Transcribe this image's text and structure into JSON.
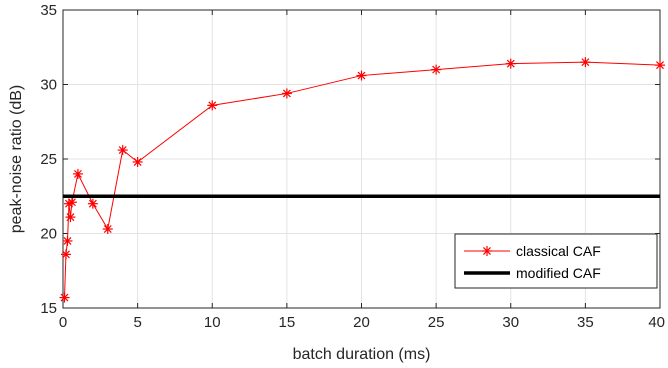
{
  "chart_data": {
    "type": "line",
    "title": "",
    "xlabel": "batch duration (ms)",
    "ylabel": "peak-noise ratio (dB)",
    "xlim": [
      0,
      40
    ],
    "ylim": [
      15,
      35
    ],
    "x_ticks": [
      0,
      5,
      10,
      15,
      20,
      25,
      30,
      35,
      40
    ],
    "y_ticks": [
      15,
      20,
      25,
      30,
      35
    ],
    "grid": true,
    "legend_position": "bottom-right",
    "series": [
      {
        "name": "classical CAF",
        "color": "#ff0000",
        "marker": "asterisk",
        "x": [
          0.1,
          0.2,
          0.3,
          0.4,
          0.5,
          0.6,
          1,
          2,
          3,
          4,
          5,
          10,
          15,
          20,
          25,
          30,
          35,
          40
        ],
        "y": [
          15.7,
          18.6,
          19.5,
          22.0,
          21.1,
          22.1,
          24.0,
          22.0,
          20.3,
          25.6,
          24.8,
          28.6,
          29.4,
          30.6,
          31.0,
          31.4,
          31.5,
          31.3
        ]
      },
      {
        "name": "modified CAF",
        "color": "#000000",
        "marker": "none",
        "x": [
          0,
          40
        ],
        "y": [
          22.5,
          22.5
        ]
      }
    ]
  }
}
